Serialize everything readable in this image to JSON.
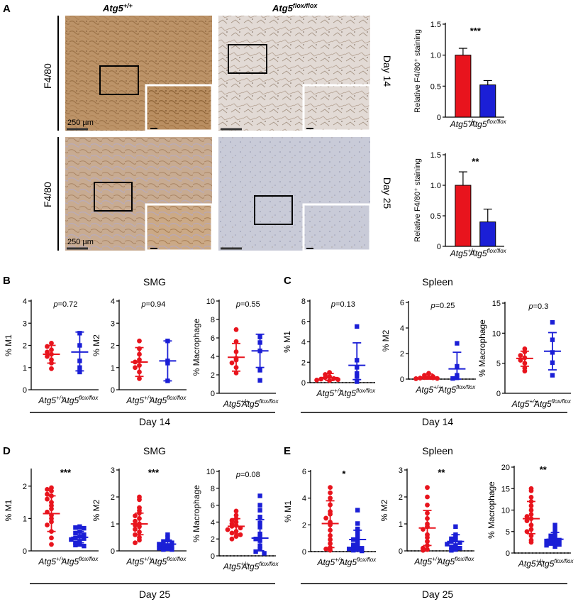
{
  "panel_letters": {
    "A": "A",
    "B": "B",
    "C": "C",
    "D": "D",
    "E": "E"
  },
  "panel_a": {
    "col_wt": "Atg5",
    "col_wt_sup": "+/+",
    "col_ko": "Atg5",
    "col_ko_sup": "flox/flox",
    "row_stain": "F4/80",
    "row_day14": "Day 14",
    "row_day25": "Day 25",
    "scale_label": "250 µm",
    "colors": {
      "tissue_brown": "#b58a5a",
      "tissue_pale": "#d9cfc8",
      "tissue_blue": "#c6c9d6"
    }
  },
  "panel_titles": {
    "b": "SMG",
    "c": "Spleen",
    "d": "SMG",
    "e": "Spleen"
  },
  "day_labels": {
    "b": "Day 14",
    "c": "Day 14",
    "d": "Day 25",
    "e": "Day 25"
  },
  "groups": {
    "wt": "Atg5",
    "wt_sup": "+/+",
    "ko": "Atg5",
    "ko_sup": "flox/flox"
  },
  "colors": {
    "wt": "#e8141d",
    "ko": "#1b1fd6",
    "axis": "#000000"
  },
  "chart_data": [
    {
      "id": "a_top",
      "type": "bar",
      "ylabel": "Relative F4/80⁺ staining",
      "ylim": [
        0,
        1.5
      ],
      "ticks": [
        "0",
        "0.5",
        "1.0",
        "1.5"
      ],
      "tick_values": [
        0,
        0.5,
        1.0,
        1.5
      ],
      "values": [
        1.0,
        0.52
      ],
      "errors": [
        0.11,
        0.07
      ],
      "annotation": "***"
    },
    {
      "id": "a_bot",
      "type": "bar",
      "ylabel": "Relative F4/80⁺ staining",
      "ylim": [
        0,
        1.5
      ],
      "ticks": [
        "0",
        "0.5",
        "1.0",
        "1.5"
      ],
      "tick_values": [
        0,
        0.5,
        1.0,
        1.5
      ],
      "values": [
        1.0,
        0.4
      ],
      "errors": [
        0.22,
        0.21
      ],
      "annotation": "**"
    },
    {
      "id": "b1",
      "type": "scatter",
      "ylabel": "% M1",
      "ylim": [
        0,
        4
      ],
      "ticks": [
        "0",
        "1",
        "2",
        "3",
        "4"
      ],
      "tick_values": [
        0,
        1,
        2,
        3,
        4
      ],
      "annotation": "=0.72",
      "annotation_p": "p",
      "wt": [
        2.1,
        1.95,
        1.8,
        1.7,
        1.6,
        1.5,
        1.35,
        1.2,
        0.95
      ],
      "ko": [
        2.55,
        2.0,
        1.3,
        1.0,
        0.8
      ],
      "wt_stats": [
        1.6,
        1.2,
        2.0
      ],
      "ko_stats": [
        1.7,
        0.85,
        2.6
      ]
    },
    {
      "id": "b2",
      "type": "scatter",
      "ylabel": "% M2",
      "ylim": [
        0,
        4
      ],
      "ticks": [
        "0",
        "1",
        "2",
        "3",
        "4"
      ],
      "tick_values": [
        0,
        1,
        2,
        3,
        4
      ],
      "annotation": "=0.94",
      "annotation_p": "p",
      "wt": [
        2.2,
        1.85,
        1.6,
        1.35,
        1.25,
        1.1,
        1.0,
        0.8,
        0.5
      ],
      "ko": [
        2.2,
        1.3,
        1.2,
        0.4
      ],
      "wt_stats": [
        1.25,
        0.6,
        1.9
      ],
      "ko_stats": [
        1.3,
        0.4,
        2.2
      ]
    },
    {
      "id": "b3",
      "type": "scatter",
      "ylabel": "% Macrophage",
      "ylim": [
        0,
        10
      ],
      "ticks": [
        "0",
        "2",
        "4",
        "6",
        "8",
        "10"
      ],
      "tick_values": [
        0,
        2,
        4,
        6,
        8,
        10
      ],
      "annotation": "=0.55",
      "annotation_p": "p",
      "wt": [
        6.9,
        5.6,
        4.5,
        3.8,
        3.6,
        3.3,
        2.8,
        2.2
      ],
      "ko": [
        6.1,
        5.5,
        4.6,
        2.5,
        1.4
      ],
      "wt_stats": [
        3.9,
        2.4,
        5.4
      ],
      "ko_stats": [
        4.6,
        2.8,
        6.4
      ]
    },
    {
      "id": "c1",
      "type": "scatter",
      "ylabel": "% M1",
      "ylim": [
        0,
        8
      ],
      "ticks": [
        "0",
        "2",
        "4",
        "6",
        "8"
      ],
      "tick_values": [
        0,
        2,
        4,
        6,
        8
      ],
      "annotation": "=0.13",
      "annotation_p": "p",
      "wt": [
        1.0,
        0.8,
        0.6,
        0.5,
        0.4,
        0.35,
        0.3,
        0.25,
        0.2
      ],
      "ko": [
        5.5,
        2.2,
        1.5,
        0.9,
        0.6,
        0.1
      ],
      "wt_stats": [
        0.5,
        0.2,
        0.9
      ],
      "ko_stats": [
        1.7,
        0.3,
        3.9
      ],
      "dotted_zero": true
    },
    {
      "id": "c2",
      "type": "scatter",
      "ylabel": "% M2",
      "ylim": [
        0,
        6
      ],
      "ticks": [
        "0",
        "2",
        "4",
        "6"
      ],
      "tick_values": [
        0,
        2,
        4,
        6
      ],
      "annotation": "=0.25",
      "annotation_p": "p",
      "wt": [
        0.45,
        0.3,
        0.2,
        0.15,
        0.12,
        0.1,
        0.08,
        0.05,
        0.03
      ],
      "ko": [
        2.8,
        1.0,
        0.3,
        0.1,
        0.05
      ],
      "wt_stats": [
        0.15,
        0.0,
        0.4
      ],
      "ko_stats": [
        0.8,
        0.0,
        2.1
      ],
      "dotted_zero": true
    },
    {
      "id": "c3",
      "type": "scatter",
      "ylabel": "% Macrophage",
      "ylim": [
        0,
        15
      ],
      "ticks": [
        "0",
        "5",
        "10",
        "15"
      ],
      "tick_values": [
        0,
        5,
        10,
        15
      ],
      "annotation": "=0.3",
      "annotation_p": "p",
      "wt": [
        7.4,
        6.9,
        6.3,
        5.9,
        5.5,
        5.0,
        4.2,
        3.7
      ],
      "ko": [
        11.8,
        8.9,
        6.8,
        5.1,
        3.0
      ],
      "wt_stats": [
        5.8,
        4.5,
        7.0
      ],
      "ko_stats": [
        7.0,
        3.9,
        10.1
      ]
    },
    {
      "id": "d1",
      "type": "scatter",
      "ylabel": "% M1",
      "ylim": [
        0,
        2.5
      ],
      "ticks": [
        "0",
        "1",
        "2"
      ],
      "tick_values": [
        0,
        1,
        2
      ],
      "annotation": "***",
      "wt": [
        1.95,
        1.9,
        1.85,
        1.75,
        1.7,
        1.6,
        1.5,
        1.4,
        1.3,
        1.2,
        1.1,
        1.0,
        0.9,
        0.8,
        0.6,
        0.4,
        0.2
      ],
      "ko": [
        0.75,
        0.72,
        0.7,
        0.6,
        0.55,
        0.5,
        0.45,
        0.4,
        0.38,
        0.35,
        0.3,
        0.25,
        0.2,
        0.18,
        0.15
      ],
      "wt_stats": [
        1.15,
        0.6,
        1.7
      ],
      "ko_stats": [
        0.42,
        0.25,
        0.6
      ]
    },
    {
      "id": "d2",
      "type": "scatter",
      "ylabel": "% M2",
      "ylim": [
        0,
        3
      ],
      "ticks": [
        "0",
        "1",
        "2",
        "3"
      ],
      "tick_values": [
        0,
        1,
        2,
        3
      ],
      "annotation": "***",
      "wt": [
        2.0,
        1.9,
        1.6,
        1.5,
        1.4,
        1.3,
        1.2,
        1.1,
        1.0,
        0.95,
        0.9,
        0.8,
        0.7,
        0.6,
        0.5,
        0.4,
        0.3
      ],
      "ko": [
        0.6,
        0.5,
        0.4,
        0.35,
        0.3,
        0.25,
        0.2,
        0.18,
        0.15,
        0.1,
        0.08,
        0.05,
        0.05
      ],
      "wt_stats": [
        1.0,
        0.6,
        1.4
      ],
      "ko_stats": [
        0.25,
        0.1,
        0.4
      ]
    },
    {
      "id": "d3",
      "type": "scatter",
      "ylabel": "% Macrophage",
      "ylim": [
        0,
        10
      ],
      "ticks": [
        "0",
        "2",
        "4",
        "6",
        "8",
        "10"
      ],
      "tick_values": [
        0,
        2,
        4,
        6,
        8,
        10
      ],
      "annotation": "=0.08",
      "annotation_p": "p",
      "wt": [
        5.3,
        4.8,
        4.4,
        4.2,
        4.0,
        3.8,
        3.6,
        3.5,
        3.3,
        3.1,
        2.9,
        2.7,
        2.5,
        2.3,
        2.0
      ],
      "ko": [
        7.1,
        6.0,
        5.4,
        4.6,
        3.9,
        3.4,
        2.6,
        2.3,
        2.0,
        1.8,
        1.2,
        0.8,
        0.5,
        0.3
      ],
      "wt_stats": [
        3.5,
        2.6,
        4.4
      ],
      "ko_stats": [
        2.1,
        0.6,
        4.3
      ],
      "dotted_zero": true
    },
    {
      "id": "e1",
      "type": "scatter",
      "ylabel": "% M1",
      "ylim": [
        0,
        6
      ],
      "ticks": [
        "0",
        "2",
        "4",
        "6"
      ],
      "tick_values": [
        0,
        2,
        4,
        6
      ],
      "annotation": "*",
      "wt": [
        4.8,
        4.4,
        4.0,
        3.5,
        3.0,
        2.8,
        2.5,
        2.2,
        2.0,
        1.6,
        1.2,
        0.9,
        0.6,
        0.3,
        0.2,
        0.1
      ],
      "ko": [
        3.1,
        2.1,
        1.7,
        1.4,
        1.1,
        0.9,
        0.7,
        0.5,
        0.4,
        0.3,
        0.25,
        0.2,
        0.15,
        0.1,
        0.05
      ],
      "wt_stats": [
        2.1,
        0.3,
        3.8
      ],
      "ko_stats": [
        0.9,
        0.1,
        1.6
      ],
      "dotted_zero": true
    },
    {
      "id": "e2",
      "type": "scatter",
      "ylabel": "% M2",
      "ylim": [
        0,
        3
      ],
      "ticks": [
        "0",
        "1",
        "2",
        "3"
      ],
      "tick_values": [
        0,
        1,
        2,
        3
      ],
      "annotation": "**",
      "wt": [
        2.35,
        2.0,
        1.7,
        1.4,
        1.2,
        1.0,
        0.9,
        0.8,
        0.6,
        0.5,
        0.35,
        0.2,
        0.1,
        0.05,
        0.02
      ],
      "ko": [
        0.9,
        0.6,
        0.5,
        0.45,
        0.4,
        0.35,
        0.3,
        0.25,
        0.2,
        0.15,
        0.1,
        0.05,
        0.02
      ],
      "wt_stats": [
        0.85,
        0.2,
        1.5
      ],
      "ko_stats": [
        0.35,
        0.1,
        0.6
      ],
      "dotted_zero": true
    },
    {
      "id": "e3",
      "type": "scatter",
      "ylabel": "% Macrophage",
      "ylim": [
        0,
        20
      ],
      "ticks": [
        "0",
        "5",
        "10",
        "15",
        "20"
      ],
      "tick_values": [
        0,
        5,
        10,
        15,
        20
      ],
      "annotation": "**",
      "wt": [
        15.0,
        14.5,
        13.0,
        12.0,
        11.0,
        10.0,
        9.0,
        8.5,
        8.0,
        7.5,
        6.5,
        5.5,
        5.0,
        4.0,
        3.0,
        2.5
      ],
      "ko": [
        6.5,
        5.5,
        4.5,
        4.0,
        3.5,
        3.2,
        3.0,
        2.8,
        2.5,
        2.2,
        2.0,
        1.8,
        1.5
      ],
      "wt_stats": [
        8.0,
        4.5,
        12.0
      ],
      "ko_stats": [
        3.2,
        2.0,
        4.8
      ],
      "dotted_zero": true
    }
  ]
}
